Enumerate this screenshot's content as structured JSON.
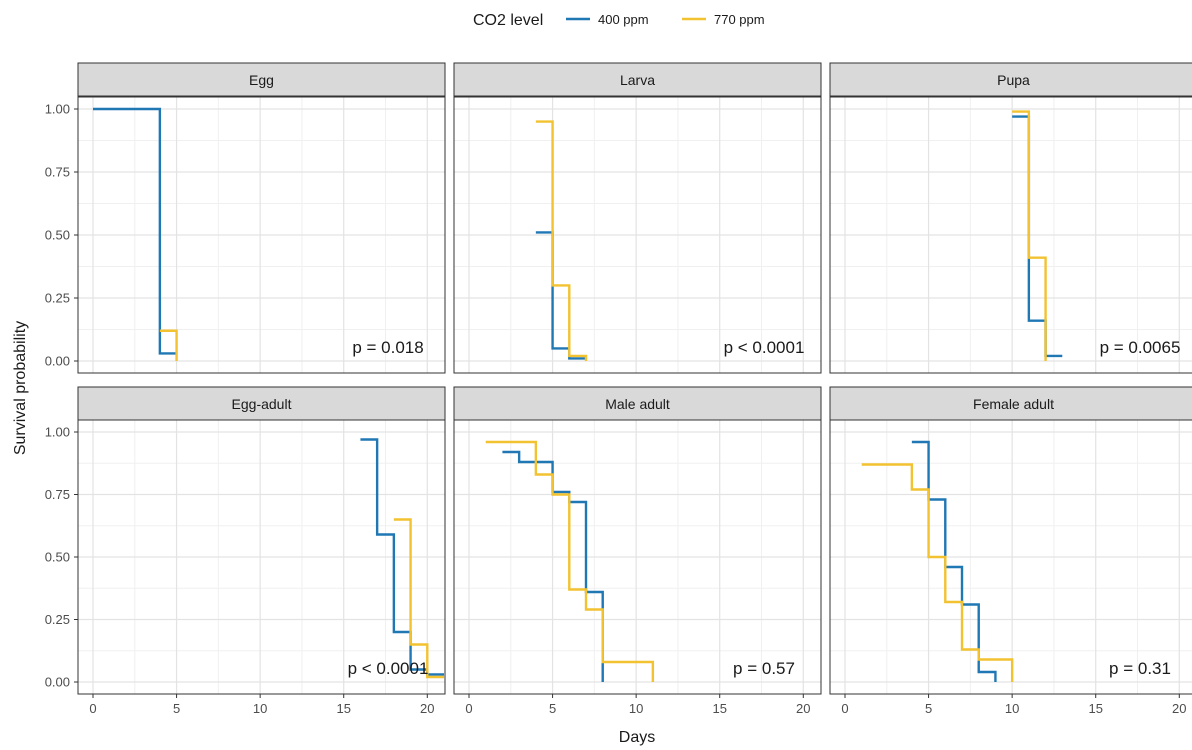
{
  "chart_data": {
    "type": "line",
    "subtype": "kaplan-meier step survival curves, faceted",
    "xlabel": "Days",
    "ylabel": "Survival probability",
    "xlim": [
      0,
      21
    ],
    "ylim": [
      0,
      1
    ],
    "x_ticks": [
      0,
      5,
      10,
      15,
      20
    ],
    "y_ticks": [
      0,
      0.25,
      0.5,
      0.75,
      1.0
    ],
    "y_tick_labels": [
      "0.00",
      "0.25",
      "0.50",
      "0.75",
      "1.00"
    ],
    "grid": true,
    "legend": {
      "title": "CO2 level",
      "position": "top",
      "entries": [
        {
          "label": "400 ppm",
          "color": "#1f77b4"
        },
        {
          "label": "770 ppm",
          "color": "#f2c230"
        }
      ]
    },
    "facets": [
      {
        "title": "Egg",
        "p_value": "p = 0.018",
        "series": [
          {
            "name": "400 ppm",
            "color": "#1f77b4",
            "x": [
              0,
              4,
              4,
              5
            ],
            "y": [
              1.0,
              1.0,
              0.03,
              0.03
            ]
          },
          {
            "name": "770 ppm",
            "color": "#f2c230",
            "x": [
              4,
              5,
              5
            ],
            "y": [
              0.12,
              0.12,
              0.0
            ]
          }
        ]
      },
      {
        "title": "Larva",
        "p_value": "p < 0.0001",
        "series": [
          {
            "name": "400 ppm",
            "color": "#1f77b4",
            "x": [
              4,
              5,
              5,
              6,
              6,
              7
            ],
            "y": [
              0.51,
              0.51,
              0.05,
              0.05,
              0.01,
              0.01
            ]
          },
          {
            "name": "770 ppm",
            "color": "#f2c230",
            "x": [
              4,
              5,
              5,
              6,
              6,
              7,
              7
            ],
            "y": [
              0.95,
              0.95,
              0.3,
              0.3,
              0.02,
              0.02,
              0.0
            ]
          }
        ]
      },
      {
        "title": "Pupa",
        "p_value": "p = 0.0065",
        "series": [
          {
            "name": "400 ppm",
            "color": "#1f77b4",
            "x": [
              10,
              11,
              11,
              12,
              12,
              13
            ],
            "y": [
              0.97,
              0.97,
              0.16,
              0.16,
              0.02,
              0.02
            ]
          },
          {
            "name": "770 ppm",
            "color": "#f2c230",
            "x": [
              10,
              11,
              11,
              12,
              12
            ],
            "y": [
              0.99,
              0.99,
              0.41,
              0.41,
              0.0
            ]
          }
        ]
      },
      {
        "title": "Egg-adult",
        "p_value": "p < 0.0001",
        "series": [
          {
            "name": "400 ppm",
            "color": "#1f77b4",
            "x": [
              16,
              17,
              17,
              18,
              18,
              19,
              19,
              20,
              20,
              21
            ],
            "y": [
              0.97,
              0.97,
              0.59,
              0.59,
              0.2,
              0.2,
              0.05,
              0.05,
              0.03,
              0.03
            ]
          },
          {
            "name": "770 ppm",
            "color": "#f2c230",
            "x": [
              18,
              19,
              19,
              20,
              20,
              21
            ],
            "y": [
              0.65,
              0.65,
              0.15,
              0.15,
              0.02,
              0.02
            ]
          }
        ]
      },
      {
        "title": "Male adult",
        "p_value": "p = 0.57",
        "series": [
          {
            "name": "400 ppm",
            "color": "#1f77b4",
            "x": [
              2,
              3,
              3,
              5,
              5,
              6,
              6,
              7,
              7,
              8,
              8
            ],
            "y": [
              0.92,
              0.92,
              0.88,
              0.88,
              0.76,
              0.76,
              0.72,
              0.72,
              0.36,
              0.36,
              0.0
            ]
          },
          {
            "name": "770 ppm",
            "color": "#f2c230",
            "x": [
              1,
              4,
              4,
              5,
              5,
              6,
              6,
              7,
              7,
              8,
              8,
              11,
              11
            ],
            "y": [
              0.96,
              0.96,
              0.83,
              0.83,
              0.75,
              0.75,
              0.37,
              0.37,
              0.29,
              0.29,
              0.08,
              0.08,
              0.0
            ]
          }
        ]
      },
      {
        "title": "Female adult",
        "p_value": "p = 0.31",
        "series": [
          {
            "name": "400 ppm",
            "color": "#1f77b4",
            "x": [
              4,
              5,
              5,
              6,
              6,
              7,
              7,
              8,
              8,
              9,
              9
            ],
            "y": [
              0.96,
              0.96,
              0.73,
              0.73,
              0.46,
              0.46,
              0.31,
              0.31,
              0.04,
              0.04,
              0.0
            ]
          },
          {
            "name": "770 ppm",
            "color": "#f2c230",
            "x": [
              1,
              4,
              4,
              5,
              5,
              6,
              6,
              7,
              7,
              8,
              8,
              10,
              10
            ],
            "y": [
              0.87,
              0.87,
              0.77,
              0.77,
              0.5,
              0.5,
              0.32,
              0.32,
              0.13,
              0.13,
              0.09,
              0.09,
              0.0
            ]
          }
        ]
      }
    ]
  }
}
